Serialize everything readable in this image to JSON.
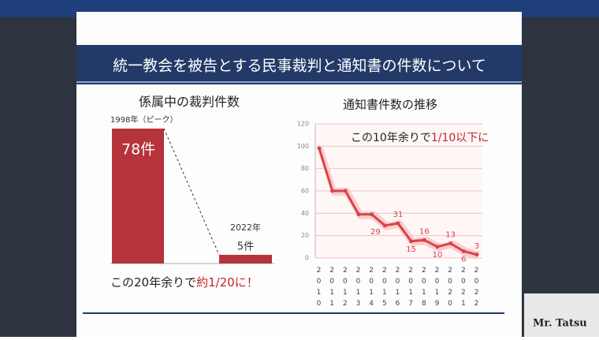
{
  "board_title": "統一教会を被告とする民事裁判と通知書の件数について",
  "caption": "Mr. Tatsu",
  "chart_data": [
    {
      "type": "bar",
      "title": "係属中の裁判件数",
      "categories": [
        "1998年（ピーク）",
        "2022年"
      ],
      "values": [
        78,
        5
      ],
      "value_labels": [
        "78件",
        "5件"
      ],
      "color": "#b5333a",
      "annotation": "この20年余りで",
      "annotation_highlight": "約1/20に！"
    },
    {
      "type": "line",
      "title": "通知書件数の推移",
      "categories": [
        "2010",
        "2011",
        "2012",
        "2013",
        "2014",
        "2015",
        "2016",
        "2017",
        "2018",
        "2019",
        "2020",
        "2021",
        "2022"
      ],
      "values": [
        98,
        60,
        60,
        39,
        39,
        29,
        31,
        15,
        16,
        10,
        13,
        6,
        3
      ],
      "value_labels": [
        null,
        null,
        null,
        null,
        null,
        "29",
        "31",
        "15",
        "16",
        "10",
        "13",
        "6",
        "3"
      ],
      "color": "#d9434a",
      "ylim": [
        0,
        120
      ],
      "yticks": [
        0,
        20,
        40,
        60,
        80,
        100,
        120
      ],
      "grid": true,
      "annotation": "この10年余りで",
      "annotation_highlight": "1/10以下に"
    }
  ]
}
